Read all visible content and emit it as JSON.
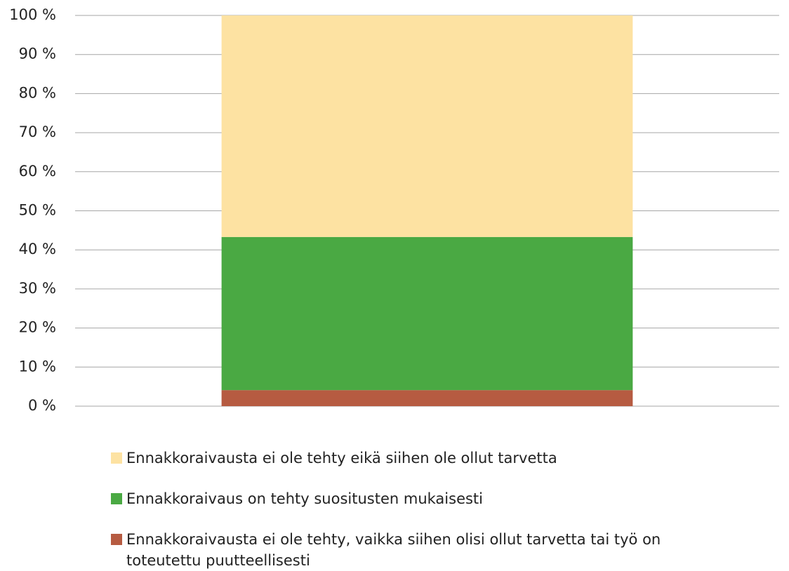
{
  "chart_data": {
    "type": "stacked_bar",
    "categories": [
      null
    ],
    "series": [
      {
        "name": "Ennakkoraivausta ei ole tehty, vaikka siihen olisi ollut tarvetta tai työ on toteutettu puutteellisesti",
        "color": "#b65b41",
        "values": [
          4.1
        ]
      },
      {
        "name": "Ennakkoraivaus on tehty suositusten mukaisesti",
        "color": "#4aa943",
        "values": [
          39.2
        ]
      },
      {
        "name": "Ennakkoraivausta ei ole tehty eikä siihen ole ollut tarvetta",
        "color": "#fde2a2",
        "values": [
          56.7
        ]
      }
    ],
    "ylim": [
      0,
      100
    ],
    "yticks": [
      {
        "value": 0,
        "label": "0 %"
      },
      {
        "value": 10,
        "label": "10 %"
      },
      {
        "value": 20,
        "label": "20 %"
      },
      {
        "value": 30,
        "label": "30 %"
      },
      {
        "value": 40,
        "label": "40 %"
      },
      {
        "value": 50,
        "label": "50 %"
      },
      {
        "value": 60,
        "label": "60 %"
      },
      {
        "value": 70,
        "label": "70 %"
      },
      {
        "value": 80,
        "label": "80 %"
      },
      {
        "value": 90,
        "label": "90 %"
      },
      {
        "value": 100,
        "label": "100 %"
      }
    ],
    "grid": true,
    "legend": "bottom"
  }
}
